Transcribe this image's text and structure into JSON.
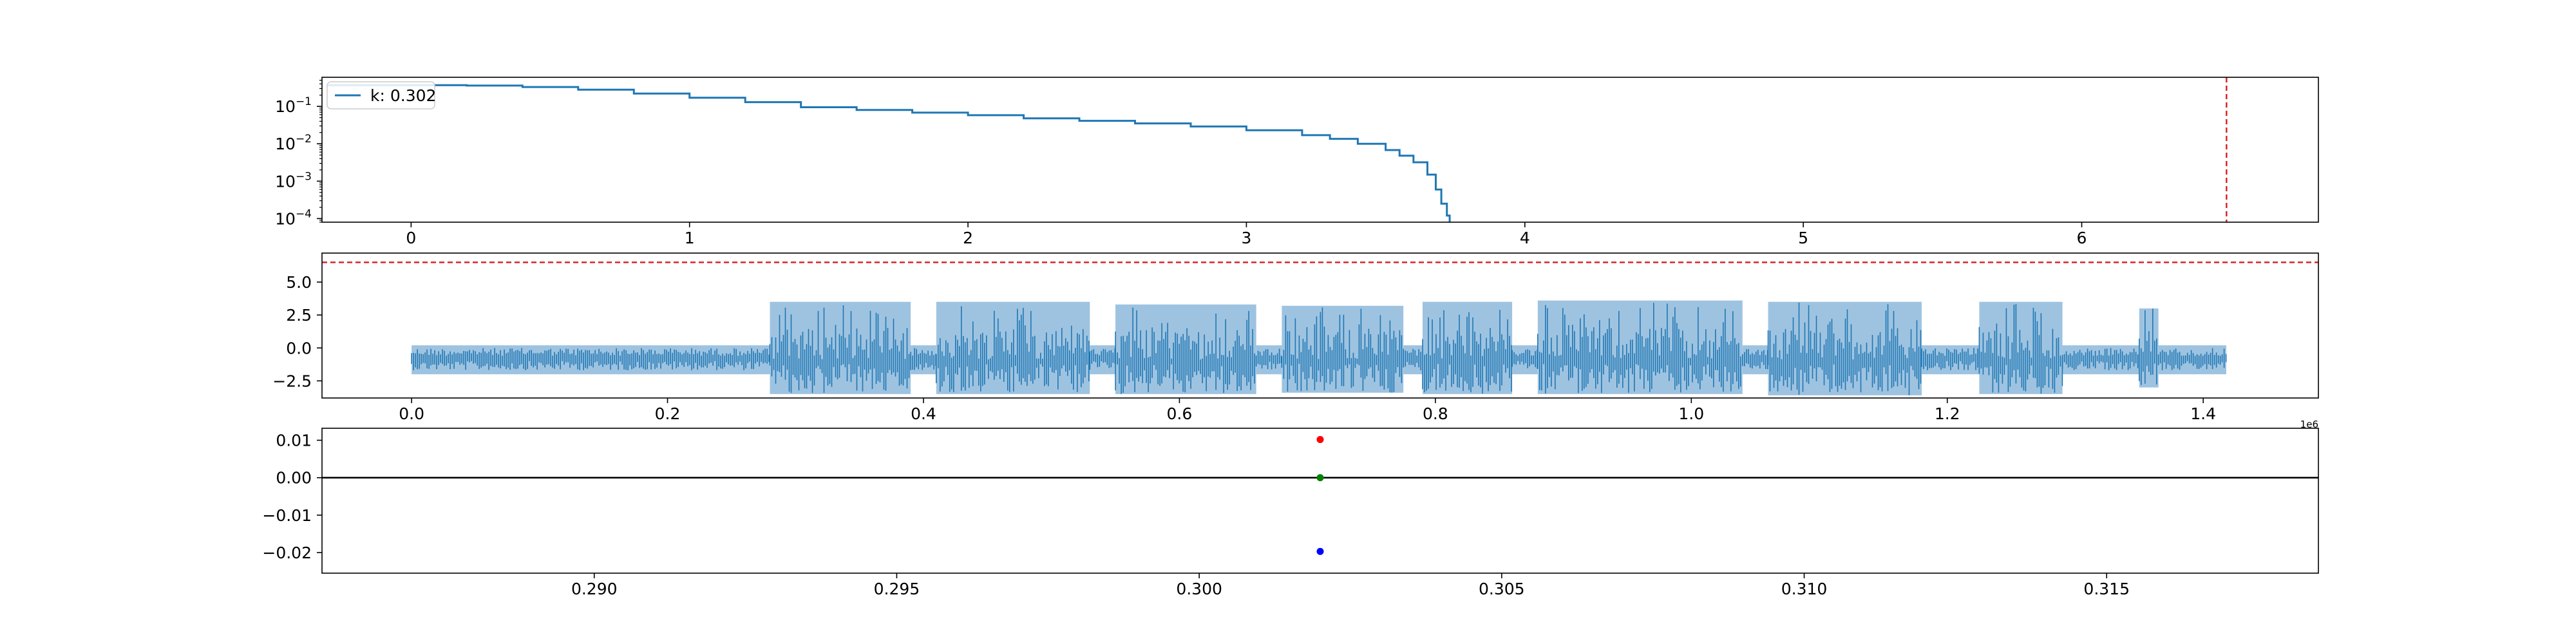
{
  "chart_data": [
    {
      "type": "line",
      "yscale": "log",
      "xlim": [
        -0.32,
        6.85
      ],
      "ylim": [
        8e-05,
        0.6
      ],
      "xticks": [
        0,
        1,
        2,
        3,
        4,
        5,
        6
      ],
      "xtick_labels": [
        "0",
        "1",
        "2",
        "3",
        "4",
        "5",
        "6"
      ],
      "yticks": [
        0.1,
        0.01,
        0.001,
        0.0001
      ],
      "ytick_labels": [
        {
          "base": "10",
          "exp": "−1"
        },
        {
          "base": "10",
          "exp": "−2"
        },
        {
          "base": "10",
          "exp": "−3"
        },
        {
          "base": "10",
          "exp": "−4"
        }
      ],
      "legend": "k: 0.302",
      "legend_position": "upper-left",
      "series_color": "#1f77b4",
      "vline_x": 6.52,
      "vline_color": "#d62728",
      "x": [
        -0.3,
        0.0,
        0.2,
        0.4,
        0.6,
        0.8,
        1.0,
        1.2,
        1.4,
        1.6,
        1.8,
        2.0,
        2.2,
        2.4,
        2.6,
        2.8,
        3.0,
        3.2,
        3.3,
        3.4,
        3.5,
        3.55,
        3.6,
        3.65,
        3.68,
        3.7,
        3.72,
        3.73
      ],
      "y": [
        0.37,
        0.37,
        0.36,
        0.33,
        0.28,
        0.22,
        0.17,
        0.13,
        0.095,
        0.08,
        0.068,
        0.058,
        0.048,
        0.041,
        0.035,
        0.029,
        0.023,
        0.017,
        0.0135,
        0.01,
        0.0068,
        0.0048,
        0.0032,
        0.0015,
        0.0006,
        0.00025,
        0.00012,
        0.0001
      ]
    },
    {
      "type": "line",
      "xlim": [
        -0.07,
        1.49
      ],
      "ylim": [
        -3.8,
        7.2
      ],
      "xticks": [
        0.0,
        0.2,
        0.4,
        0.6,
        0.8,
        1.0,
        1.2,
        1.4
      ],
      "xtick_labels": [
        "0.0",
        "0.2",
        "0.4",
        "0.6",
        "0.8",
        "1.0",
        "1.2",
        "1.4"
      ],
      "yticks": [
        5.0,
        2.5,
        0.0,
        -2.5
      ],
      "ytick_labels": [
        "5.0",
        "2.5",
        "0.0",
        "−2.5"
      ],
      "x_offset_label": "1e6",
      "x_data_range": [
        0.0,
        1.418
      ],
      "hline_y": 6.5,
      "hline_color": "#d62728",
      "line_color": "#1f77b4",
      "fill_color": "#9ec3e0",
      "segments": [
        {
          "x0": 0.0,
          "x1": 0.28,
          "lo": -2.0,
          "hi": 0.2,
          "active": false
        },
        {
          "x0": 0.28,
          "x1": 0.39,
          "lo": -3.5,
          "hi": 3.5,
          "active": true
        },
        {
          "x0": 0.39,
          "x1": 0.41,
          "lo": -2.0,
          "hi": 0.2,
          "active": false
        },
        {
          "x0": 0.41,
          "x1": 0.53,
          "lo": -3.5,
          "hi": 3.5,
          "active": true
        },
        {
          "x0": 0.53,
          "x1": 0.55,
          "lo": -2.0,
          "hi": 0.2,
          "active": false
        },
        {
          "x0": 0.55,
          "x1": 0.66,
          "lo": -3.5,
          "hi": 3.3,
          "active": true
        },
        {
          "x0": 0.66,
          "x1": 0.68,
          "lo": -2.0,
          "hi": 0.2,
          "active": false
        },
        {
          "x0": 0.68,
          "x1": 0.775,
          "lo": -3.4,
          "hi": 3.2,
          "active": true
        },
        {
          "x0": 0.775,
          "x1": 0.79,
          "lo": -2.0,
          "hi": 0.2,
          "active": false
        },
        {
          "x0": 0.79,
          "x1": 0.86,
          "lo": -3.5,
          "hi": 3.5,
          "active": true
        },
        {
          "x0": 0.86,
          "x1": 0.88,
          "lo": -2.0,
          "hi": 0.2,
          "active": false
        },
        {
          "x0": 0.88,
          "x1": 1.04,
          "lo": -3.5,
          "hi": 3.6,
          "active": true
        },
        {
          "x0": 1.04,
          "x1": 1.06,
          "lo": -2.0,
          "hi": 0.2,
          "active": false
        },
        {
          "x0": 1.06,
          "x1": 1.18,
          "lo": -3.6,
          "hi": 3.5,
          "active": true
        },
        {
          "x0": 1.18,
          "x1": 1.225,
          "lo": -2.0,
          "hi": 0.2,
          "active": false
        },
        {
          "x0": 1.225,
          "x1": 1.29,
          "lo": -3.5,
          "hi": 3.5,
          "active": true
        },
        {
          "x0": 1.29,
          "x1": 1.35,
          "lo": -2.0,
          "hi": 0.2,
          "active": false
        },
        {
          "x0": 1.35,
          "x1": 1.365,
          "lo": -3.0,
          "hi": 3.0,
          "active": true
        },
        {
          "x0": 1.365,
          "x1": 1.418,
          "lo": -2.0,
          "hi": 0.2,
          "active": false
        }
      ]
    },
    {
      "type": "scatter",
      "xlim": [
        0.2855,
        0.3185
      ],
      "ylim": [
        -0.0255,
        0.0132
      ],
      "xticks": [
        0.29,
        0.295,
        0.3,
        0.305,
        0.31,
        0.315
      ],
      "xtick_labels": [
        "0.290",
        "0.295",
        "0.300",
        "0.305",
        "0.310",
        "0.315"
      ],
      "yticks": [
        0.01,
        0.0,
        -0.01,
        -0.02
      ],
      "ytick_labels": [
        "0.01",
        "0.00",
        "−0.01",
        "−0.02"
      ],
      "hline_y": 0.0,
      "hline_color": "#000000",
      "points": [
        {
          "x": 0.302,
          "y": 0.0102,
          "color": "#ff0000"
        },
        {
          "x": 0.302,
          "y": 0.0,
          "color": "#008000"
        },
        {
          "x": 0.302,
          "y": -0.0197,
          "color": "#0000ff"
        }
      ]
    }
  ]
}
